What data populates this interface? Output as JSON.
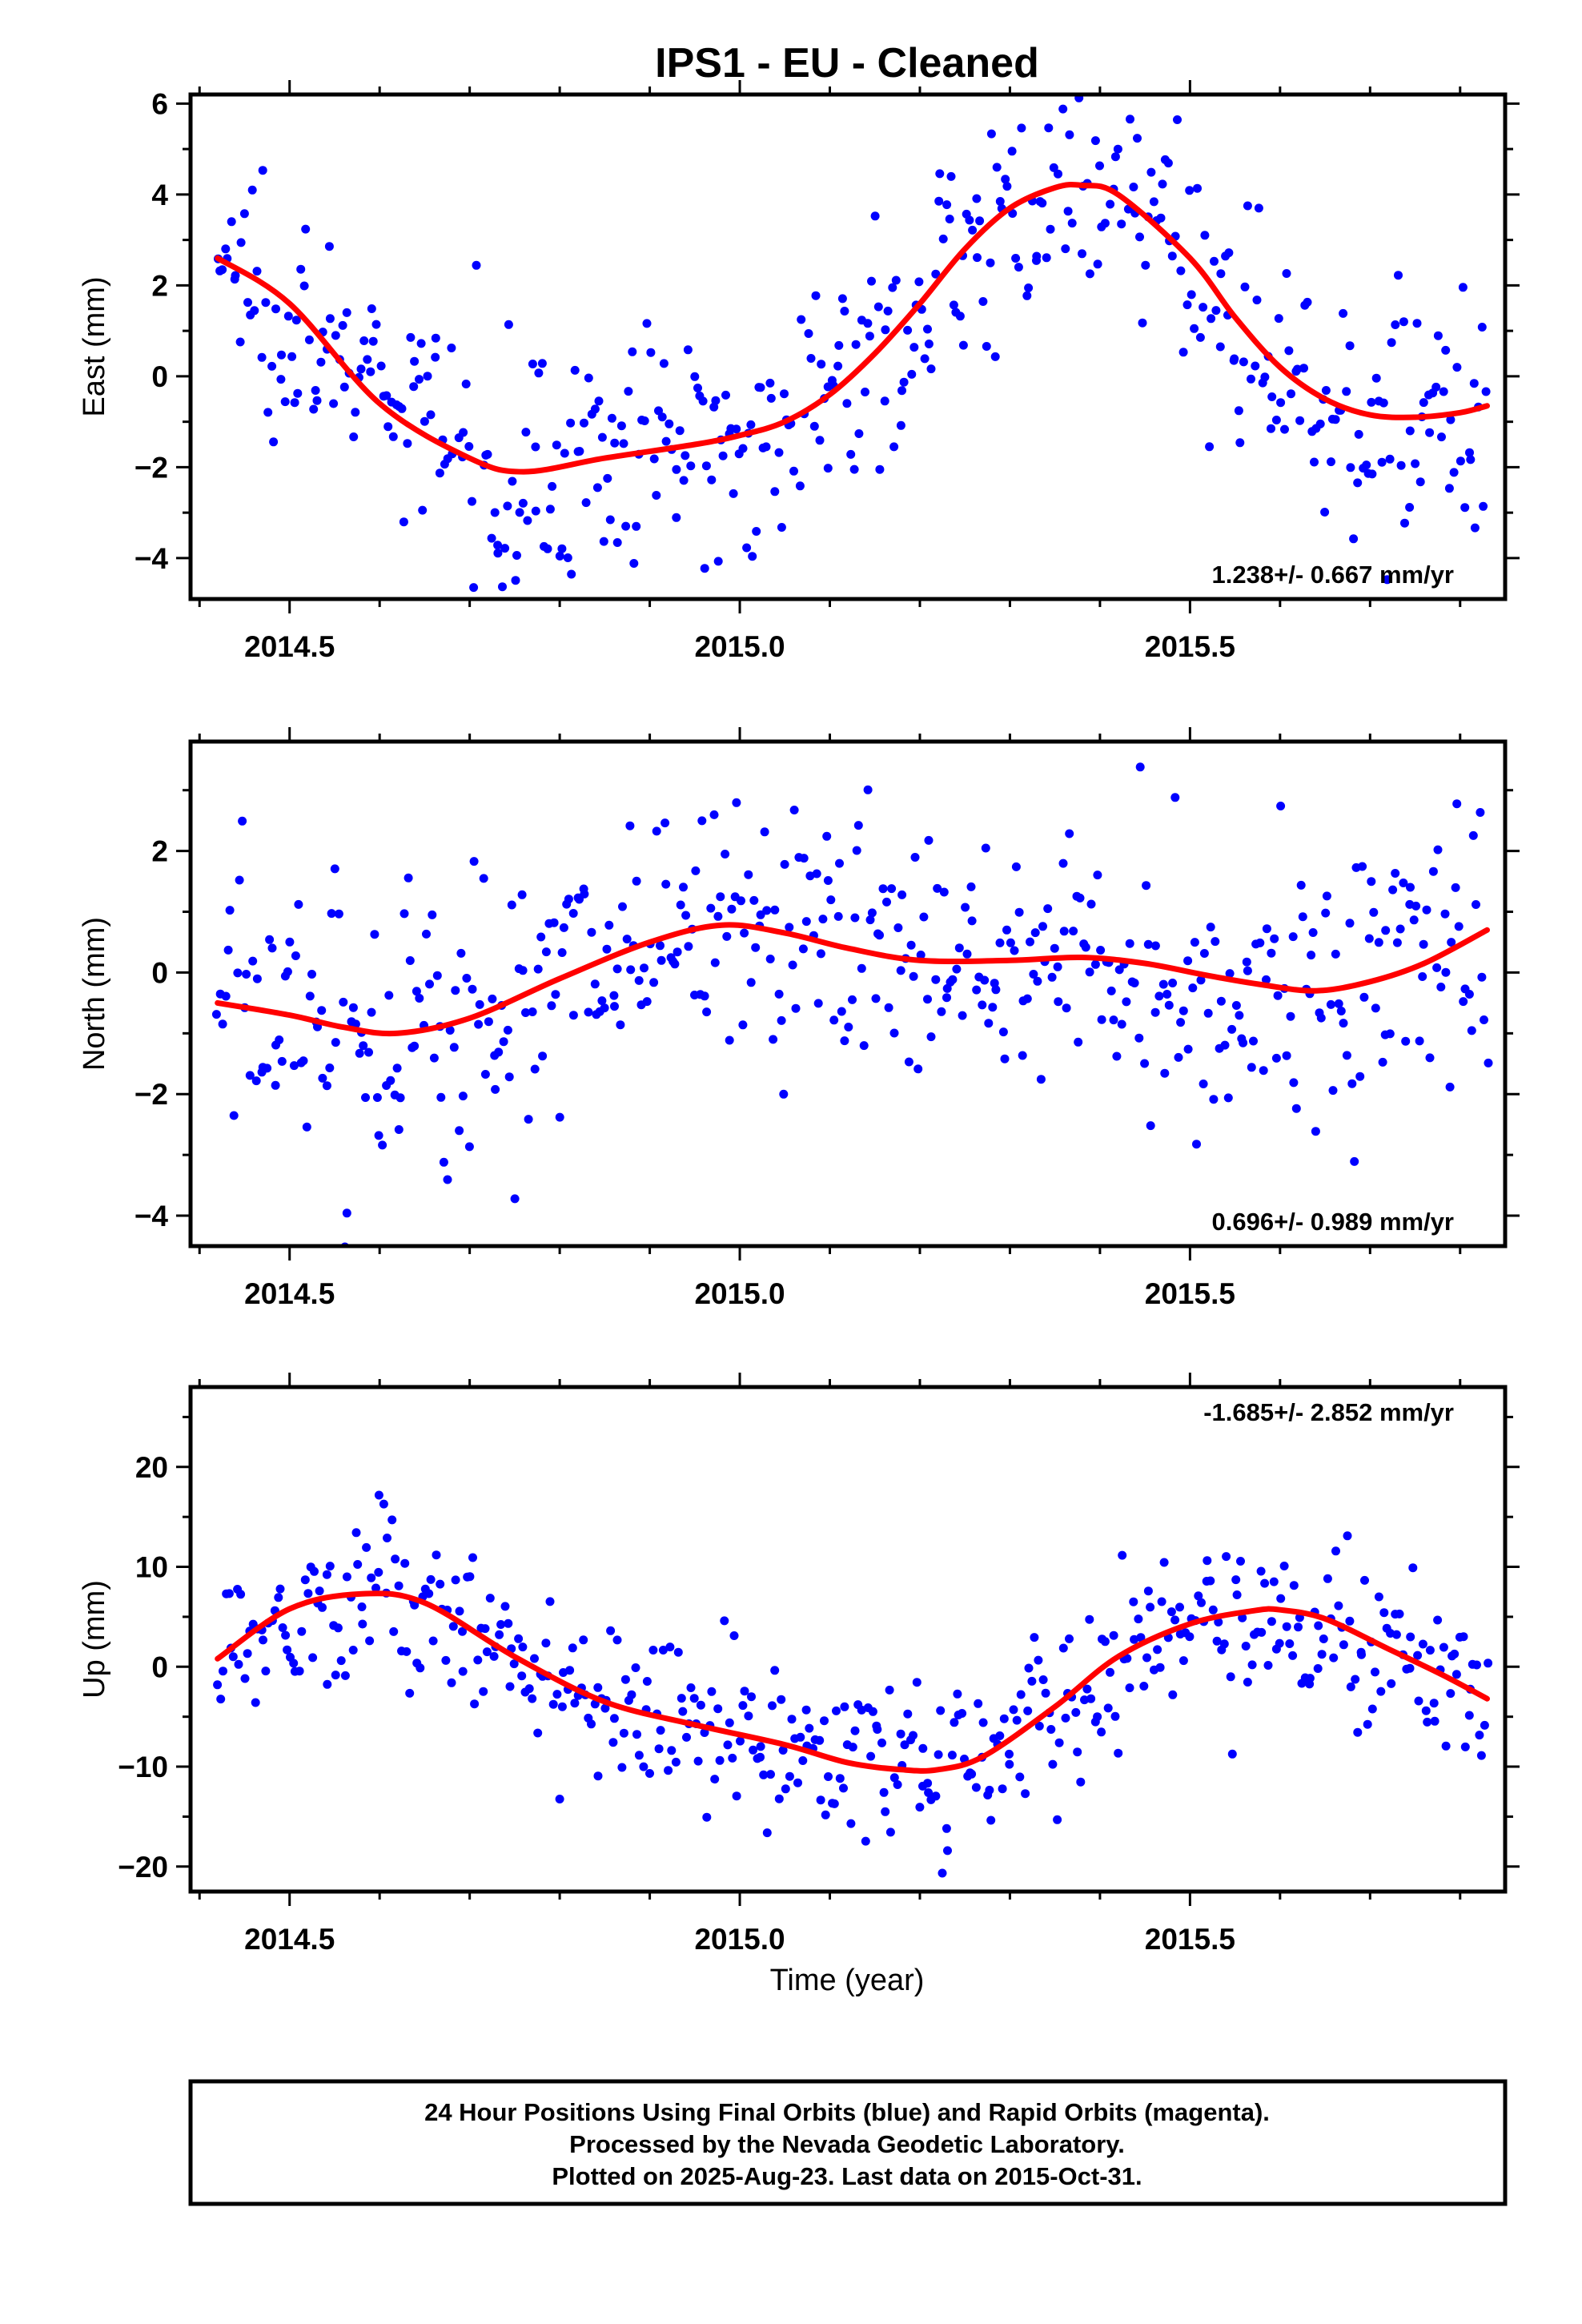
{
  "title": "IPS1  - EU - Cleaned",
  "x_axis_label": "Time (year)",
  "footer_lines": [
    "24 Hour Positions Using Final Orbits (blue) and Rapid Orbits (magenta).",
    "Processed by the Nevada Geodetic Laboratory.",
    "Plotted on 2025-Aug-23. Last data on 2015-Oct-31."
  ],
  "colors": {
    "points": "#0000ff",
    "fit": "#ff0000",
    "frame": "#000000"
  },
  "chart_data": [
    {
      "type": "scatter",
      "panel": "east",
      "ylabel": "East (mm)",
      "rate_text": "1.238+/- 0.667 mm/yr",
      "rate_position": "bottom-right",
      "xlim": [
        2014.39,
        2015.85
      ],
      "ylim": [
        -4.9,
        6.2
      ],
      "xticks": [
        2014.5,
        2015.0,
        2015.5
      ],
      "xtick_labels": [
        "2014.5",
        "2015.0",
        "2015.5"
      ],
      "yticks": [
        -4,
        -2,
        0,
        2,
        4,
        6
      ],
      "ytick_labels": [
        "−4",
        "−2",
        "0",
        "2",
        "4",
        "6"
      ],
      "x_minor_step": 0.1,
      "y_minor_step": 1,
      "fit_x": [
        2014.42,
        2014.5,
        2014.6,
        2014.7,
        2014.76,
        2014.85,
        2014.95,
        2015.0,
        2015.05,
        2015.1,
        2015.15,
        2015.2,
        2015.25,
        2015.3,
        2015.35,
        2015.38,
        2015.42,
        2015.5,
        2015.55,
        2015.6,
        2015.65,
        2015.7,
        2015.75,
        2015.8,
        2015.83
      ],
      "fit_y": [
        2.6,
        1.6,
        -0.6,
        -1.8,
        -2.1,
        -1.8,
        -1.5,
        -1.3,
        -1.0,
        -0.4,
        0.5,
        1.6,
        2.8,
        3.7,
        4.15,
        4.2,
        4.0,
        2.6,
        1.3,
        0.2,
        -0.5,
        -0.85,
        -0.9,
        -0.8,
        -0.65
      ],
      "fit_generated": true,
      "x": [],
      "y": [],
      "scatter_noise_mm": 1.3
    },
    {
      "type": "scatter",
      "panel": "north",
      "ylabel": "North (mm)",
      "rate_text": "0.696+/- 0.989 mm/yr",
      "rate_position": "bottom-right",
      "xlim": [
        2014.39,
        2015.85
      ],
      "ylim": [
        -4.5,
        3.8
      ],
      "xticks": [
        2014.5,
        2015.0,
        2015.5
      ],
      "xtick_labels": [
        "2014.5",
        "2015.0",
        "2015.5"
      ],
      "yticks": [
        -4,
        -2,
        0,
        2
      ],
      "ytick_labels": [
        "−4",
        "−2",
        "0",
        "2"
      ],
      "x_minor_step": 0.1,
      "y_minor_step": 1,
      "fit_x": [
        2014.42,
        2014.5,
        2014.56,
        2014.62,
        2014.7,
        2014.8,
        2014.9,
        2014.98,
        2015.05,
        2015.12,
        2015.2,
        2015.3,
        2015.38,
        2015.45,
        2015.52,
        2015.58,
        2015.64,
        2015.7,
        2015.76,
        2015.83
      ],
      "fit_y": [
        -0.5,
        -0.7,
        -0.9,
        -1.0,
        -0.75,
        -0.1,
        0.5,
        0.78,
        0.65,
        0.4,
        0.2,
        0.2,
        0.25,
        0.15,
        -0.05,
        -0.2,
        -0.3,
        -0.15,
        0.15,
        0.7
      ],
      "fit_generated": true,
      "x": [],
      "y": [],
      "scatter_noise_mm": 1.2
    },
    {
      "type": "scatter",
      "panel": "up",
      "ylabel": "Up (mm)",
      "rate_text": "-1.685+/- 2.852 mm/yr",
      "rate_position": "top-right",
      "xlim": [
        2014.39,
        2015.85
      ],
      "ylim": [
        -22.5,
        28
      ],
      "xticks": [
        2014.5,
        2015.0,
        2015.5
      ],
      "xtick_labels": [
        "2014.5",
        "2015.0",
        "2015.5"
      ],
      "yticks": [
        -20,
        -10,
        0,
        10,
        20
      ],
      "ytick_labels": [
        "−20",
        "−10",
        "0",
        "10",
        "20"
      ],
      "x_minor_step": 0.1,
      "y_minor_step": 5,
      "fit_x": [
        2014.42,
        2014.5,
        2014.58,
        2014.65,
        2014.75,
        2014.85,
        2014.95,
        2015.05,
        2015.12,
        2015.18,
        2015.22,
        2015.27,
        2015.35,
        2015.42,
        2015.5,
        2015.57,
        2015.6,
        2015.65,
        2015.72,
        2015.78,
        2015.83
      ],
      "fit_y": [
        0.8,
        5.8,
        7.3,
        6.4,
        1.0,
        -3.5,
        -5.8,
        -7.8,
        -9.6,
        -10.3,
        -10.3,
        -9.0,
        -4.0,
        1.0,
        4.3,
        5.6,
        5.7,
        4.8,
        1.8,
        -0.8,
        -3.2
      ],
      "fit_generated": true,
      "x": [],
      "y": [],
      "scatter_noise_mm": 4.2
    }
  ]
}
